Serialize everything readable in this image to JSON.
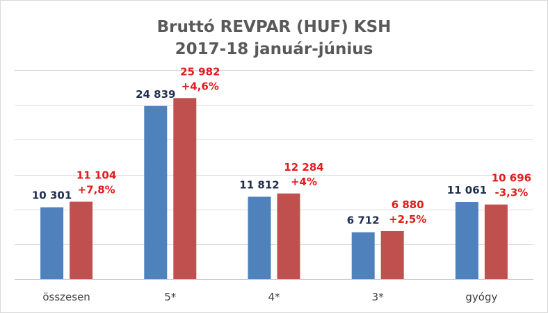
{
  "chart_data": {
    "type": "bar",
    "title": [
      "Bruttó REVPAR (HUF) KSH",
      "2017-18 január-június"
    ],
    "xlabel": "",
    "ylabel": "",
    "categories": [
      "összesen",
      "5*",
      "4*",
      "3*",
      "gyógy"
    ],
    "series": [
      {
        "values": [
          10301,
          24839,
          11812,
          6712,
          11061
        ],
        "labels": [
          "10 301",
          "24 839",
          "11 812",
          "6 712",
          "11 061"
        ],
        "color": "#4f81bd",
        "label_color": "#1f2d4e"
      },
      {
        "values": [
          11104,
          25982,
          12284,
          6880,
          10696
        ],
        "labels": [
          "11 104",
          "25 982",
          "12 284",
          "6 880",
          "10 696"
        ],
        "changes": [
          "+7,8%",
          "+4,6%",
          "+4%",
          "+2,5%",
          "-3,3%"
        ],
        "color": "#c0504d",
        "label_color": "#e01b1b"
      }
    ],
    "ylim": [
      0,
      30000
    ],
    "grid": true,
    "y_ticks_shown": false,
    "legend": "none"
  }
}
